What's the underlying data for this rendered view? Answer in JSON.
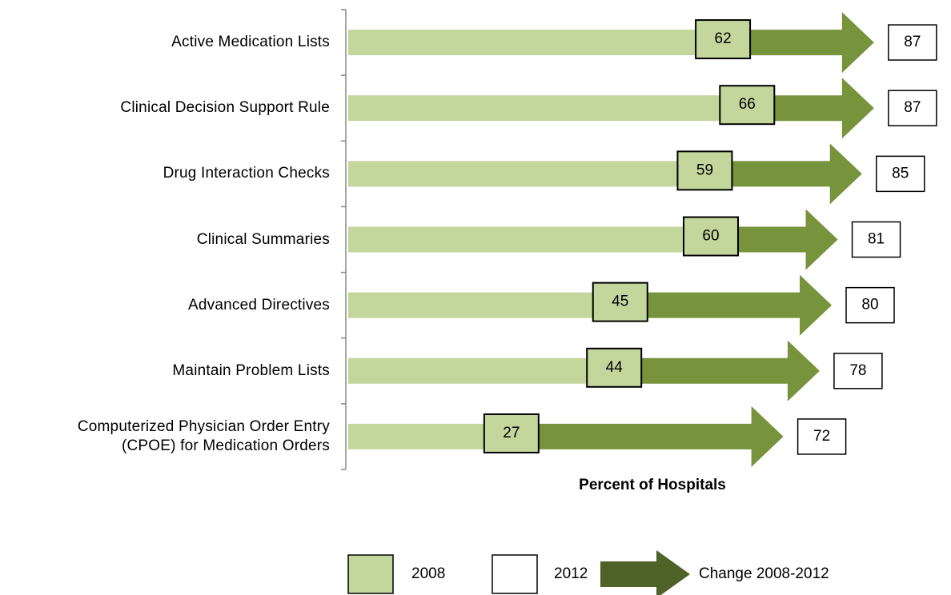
{
  "chart_data": {
    "type": "arrow",
    "categories": [
      "Active Medication Lists",
      "Clinical Decision Support Rule",
      "Drug Interaction Checks",
      "Clinical Summaries",
      "Advanced Directives",
      "Maintain Problem Lists",
      "Computerized Physician Order Entry\n(CPOE) for Medication Orders"
    ],
    "series": [
      {
        "name": "2008",
        "color": "#c3d69b",
        "values": [
          62,
          66,
          59,
          60,
          45,
          44,
          27
        ]
      },
      {
        "name": "2012",
        "color": "#ffffff",
        "values": [
          87,
          87,
          85,
          81,
          80,
          78,
          72
        ]
      }
    ],
    "change": {
      "name": "Change 2008-2012",
      "color": "#77933c",
      "legend_color": "#4f6228"
    },
    "xlabel": "Percent of Hospitals",
    "xlim": [
      0,
      100
    ]
  }
}
